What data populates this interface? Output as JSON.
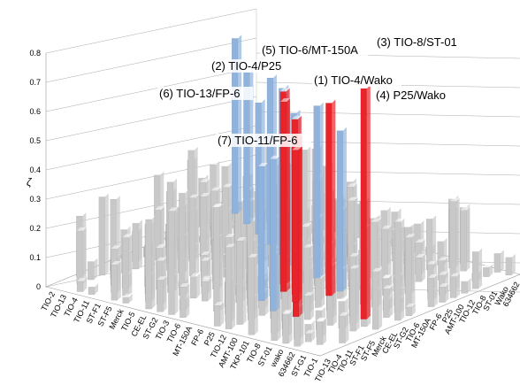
{
  "chart_data": {
    "type": "bar",
    "subtype": "3d-bar-matrix",
    "title": "",
    "zlabel": "ζ",
    "zlim": [
      0,
      0.8
    ],
    "z_ticks": [
      "0",
      "0.1",
      "0.2",
      "0.3",
      "0.4",
      "0.5",
      "0.6",
      "0.7",
      "0.8"
    ],
    "grid": true,
    "x_axis_categories": [
      "TIO-2",
      "TIO-13",
      "TIO-4",
      "TIO-11",
      "ST-F1",
      "ST-F5",
      "Merck",
      "TIO-5",
      "CE-EL",
      "ST-G2",
      "TIO-3",
      "TIO-6",
      "MT-150A",
      "FP-6",
      "P25",
      "TIO-12",
      "AMT-100",
      "TKP-101",
      "TIO-8",
      "ST-01",
      "wako",
      "634662",
      "ST-G1",
      "TIO-1"
    ],
    "y_axis_categories": [
      "TIO-13",
      "TIO-4",
      "TIO-11",
      "ST-F1",
      "ST-F5",
      "Merck",
      "CE-EL",
      "ST-G2",
      "TIO-6",
      "MT-150A",
      "FP-6",
      "P25",
      "AMT-100",
      "TIO-12",
      "TIO-8",
      "ST-01",
      "Wako",
      "634662"
    ],
    "series_colors": {
      "highlighted": "#e8232a",
      "blue": "#8fb3dd",
      "other": "#c8c8c8"
    },
    "highlighted_pairs": [
      {
        "label": "(1) TIO-4/Wako",
        "value": 0.66
      },
      {
        "label": "(2) TIO-4/P25",
        "value": 0.65
      },
      {
        "label": "(3) TIO-8/ST-01",
        "value": 0.79
      },
      {
        "label": "(4) P25/Wako",
        "value": 0.61
      },
      {
        "label": "(5) TIO-6/MT-150A",
        "value": 0.66
      },
      {
        "label": "(6) TIO-13/FP-6",
        "value": 0.6
      },
      {
        "label": "(7) TIO-11/FP-6",
        "value": 0.52
      }
    ],
    "blue_bars": [
      {
        "value": 0.6
      },
      {
        "value": 0.52
      },
      {
        "value": 0.45
      },
      {
        "value": 0.57
      },
      {
        "value": 0.57
      },
      {
        "value": 0.52
      },
      {
        "value": 0.59
      },
      {
        "value": 0.55
      },
      {
        "value": 0.46
      },
      {
        "value": 0.52
      }
    ]
  }
}
